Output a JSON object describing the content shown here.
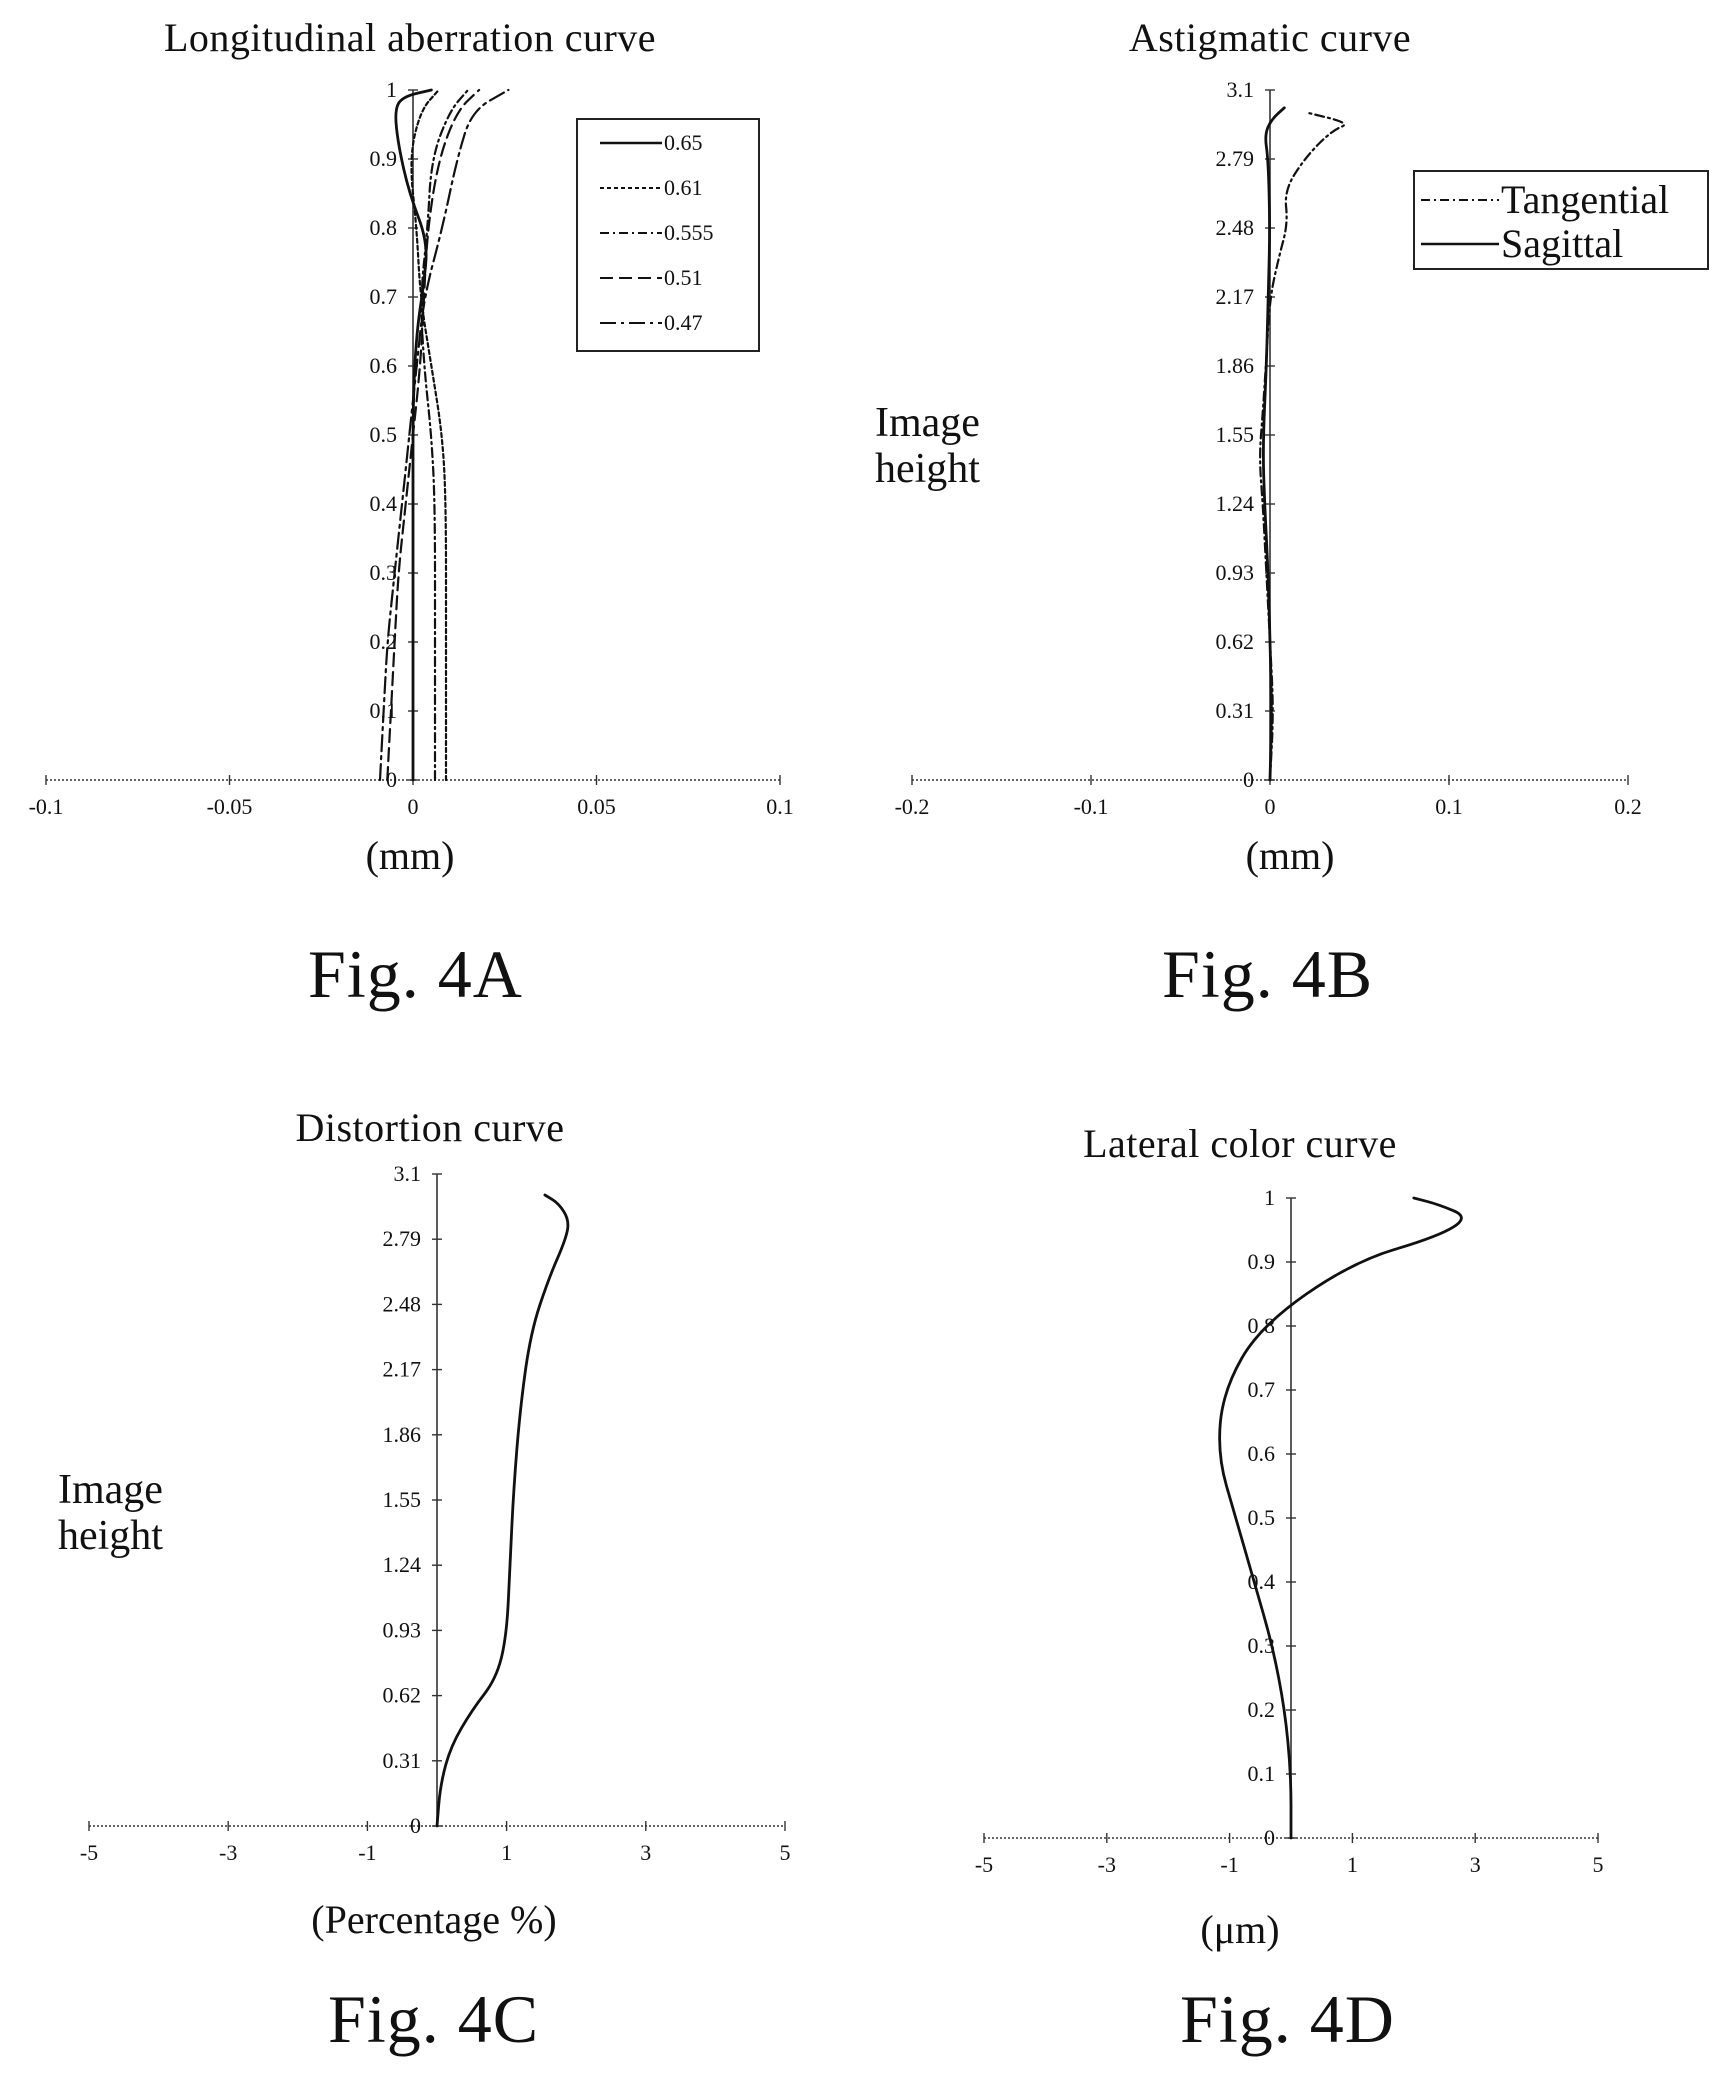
{
  "figures": [
    {
      "id": "4A",
      "caption": "Fig. 4A",
      "title": "Longitudinal aberration curve",
      "xlabel": "(mm)",
      "ylabel": "",
      "legend": [
        "0.65",
        "0.61",
        "0.555",
        "0.51",
        "0.47"
      ]
    },
    {
      "id": "4B",
      "caption": "Fig. 4B",
      "title": "Astigmatic curve",
      "xlabel": "(mm)",
      "ylabel": "Image height",
      "legend": [
        "Tangential",
        "Sagittal"
      ]
    },
    {
      "id": "4C",
      "caption": "Fig. 4C",
      "title": "Distortion curve",
      "xlabel": "(Percentage %)",
      "ylabel": "Image height",
      "legend": []
    },
    {
      "id": "4D",
      "caption": "Fig. 4D",
      "title": "Lateral color curve",
      "xlabel": "(μm)",
      "ylabel": "",
      "legend": []
    }
  ],
  "chart_data": [
    {
      "type": "line",
      "title": "Longitudinal aberration curve",
      "xlabel": "(mm)",
      "xlim": [
        -0.1,
        0.1
      ],
      "ylim": [
        0,
        1
      ],
      "xticks": [
        "-0.1",
        "-0.05",
        "0",
        "0.05",
        "0.1"
      ],
      "yticks": [
        "0",
        "0.1",
        "0.2",
        "0.3",
        "0.4",
        "0.5",
        "0.6",
        "0.7",
        "0.8",
        "0.9",
        "1"
      ],
      "legend_position": "top-right",
      "series": [
        {
          "name": "0.65",
          "dash": "solid",
          "points": [
            [
              0,
              0
            ],
            [
              0,
              0.2
            ],
            [
              0,
              0.4
            ],
            [
              0,
              0.55
            ],
            [
              0.001,
              0.65
            ],
            [
              0.003,
              0.72
            ],
            [
              0.004,
              0.78
            ],
            [
              -0.001,
              0.85
            ],
            [
              -0.004,
              0.92
            ],
            [
              -0.005,
              0.97
            ],
            [
              -0.003,
              0.99
            ],
            [
              0.005,
              1.0
            ]
          ]
        },
        {
          "name": "0.61",
          "dash": "dash-short",
          "points": [
            [
              0.009,
              0
            ],
            [
              0.009,
              0.2
            ],
            [
              0.009,
              0.4
            ],
            [
              0.008,
              0.5
            ],
            [
              0.005,
              0.6
            ],
            [
              0.002,
              0.7
            ],
            [
              0.001,
              0.8
            ],
            [
              -0.001,
              0.9
            ],
            [
              0.002,
              0.97
            ],
            [
              0.007,
              1.0
            ]
          ]
        },
        {
          "name": "0.555",
          "dash": "dash-dot",
          "points": [
            [
              0.006,
              0
            ],
            [
              0.006,
              0.2
            ],
            [
              0.006,
              0.4
            ],
            [
              0.005,
              0.5
            ],
            [
              0.003,
              0.6
            ],
            [
              0.002,
              0.7
            ],
            [
              0.004,
              0.8
            ],
            [
              0.005,
              0.9
            ],
            [
              0.01,
              0.97
            ],
            [
              0.015,
              1.0
            ]
          ]
        },
        {
          "name": "0.51",
          "dash": "dash-long",
          "points": [
            [
              -0.007,
              0
            ],
            [
              -0.006,
              0.1
            ],
            [
              -0.005,
              0.2
            ],
            [
              -0.004,
              0.3
            ],
            [
              -0.002,
              0.4
            ],
            [
              0.0,
              0.5
            ],
            [
              0.002,
              0.6
            ],
            [
              0.003,
              0.7
            ],
            [
              0.004,
              0.8
            ],
            [
              0.007,
              0.9
            ],
            [
              0.012,
              0.97
            ],
            [
              0.018,
              1.0
            ]
          ]
        },
        {
          "name": "0.47",
          "dash": "dash-dot-long",
          "points": [
            [
              -0.009,
              0
            ],
            [
              -0.008,
              0.1
            ],
            [
              -0.007,
              0.2
            ],
            [
              -0.005,
              0.3
            ],
            [
              -0.003,
              0.4
            ],
            [
              -0.001,
              0.5
            ],
            [
              0.001,
              0.6
            ],
            [
              0.003,
              0.7
            ],
            [
              0.008,
              0.8
            ],
            [
              0.012,
              0.9
            ],
            [
              0.016,
              0.97
            ],
            [
              0.026,
              1.0
            ]
          ]
        }
      ]
    },
    {
      "type": "line",
      "title": "Astigmatic curve",
      "xlabel": "(mm)",
      "ylabel": "Image height",
      "xlim": [
        -0.2,
        0.2
      ],
      "ylim": [
        0,
        3.1
      ],
      "xticks": [
        "-0.2",
        "-0.1",
        "0",
        "0.1",
        "0.2"
      ],
      "yticks": [
        "0",
        "0.31",
        "0.62",
        "0.93",
        "1.24",
        "1.55",
        "1.86",
        "2.17",
        "2.48",
        "2.79",
        "3.1"
      ],
      "legend_position": "top-right",
      "series": [
        {
          "name": "Tangential",
          "dash": "dash-dot",
          "points": [
            [
              0,
              0
            ],
            [
              0.002,
              0.31
            ],
            [
              0.0,
              0.62
            ],
            [
              -0.002,
              0.93
            ],
            [
              -0.004,
              1.24
            ],
            [
              -0.006,
              1.45
            ],
            [
              -0.004,
              1.65
            ],
            [
              -0.002,
              1.9
            ],
            [
              0.0,
              2.17
            ],
            [
              0.005,
              2.35
            ],
            [
              0.01,
              2.5
            ],
            [
              0.008,
              2.65
            ],
            [
              0.02,
              2.8
            ],
            [
              0.035,
              2.92
            ],
            [
              0.045,
              2.95
            ],
            [
              0.02,
              3.0
            ]
          ]
        },
        {
          "name": "Sagittal",
          "dash": "solid",
          "points": [
            [
              0,
              0
            ],
            [
              0.001,
              0.31
            ],
            [
              0.0,
              0.62
            ],
            [
              -0.001,
              0.93
            ],
            [
              -0.003,
              1.24
            ],
            [
              -0.004,
              1.5
            ],
            [
              -0.002,
              1.86
            ],
            [
              -0.001,
              2.17
            ],
            [
              0.0,
              2.48
            ],
            [
              -0.001,
              2.79
            ],
            [
              -0.003,
              2.9
            ],
            [
              0.001,
              2.97
            ],
            [
              0.008,
              3.02
            ]
          ]
        }
      ]
    },
    {
      "type": "line",
      "title": "Distortion curve",
      "xlabel": "(Percentage %)",
      "ylabel": "Image height",
      "xlim": [
        -5,
        5
      ],
      "ylim": [
        0,
        3.1
      ],
      "xticks": [
        "-5",
        "-3",
        "-1",
        "1",
        "3",
        "5"
      ],
      "yticks": [
        "0",
        "0.31",
        "0.62",
        "0.93",
        "1.24",
        "1.55",
        "1.86",
        "2.17",
        "2.48",
        "2.79",
        "3.1"
      ],
      "series": [
        {
          "name": "",
          "dash": "solid",
          "points": [
            [
              0,
              0
            ],
            [
              0.05,
              0.2
            ],
            [
              0.2,
              0.38
            ],
            [
              0.5,
              0.55
            ],
            [
              0.85,
              0.7
            ],
            [
              1.0,
              0.9
            ],
            [
              1.05,
              1.24
            ],
            [
              1.1,
              1.6
            ],
            [
              1.2,
              2.0
            ],
            [
              1.35,
              2.35
            ],
            [
              1.6,
              2.6
            ],
            [
              1.85,
              2.79
            ],
            [
              1.9,
              2.88
            ],
            [
              1.75,
              2.96
            ],
            [
              1.55,
              3.0
            ]
          ]
        }
      ]
    },
    {
      "type": "line",
      "title": "Lateral color curve",
      "xlabel": "(μm)",
      "xlim": [
        -5,
        5
      ],
      "ylim": [
        0,
        1
      ],
      "xticks": [
        "-5",
        "-3",
        "-1",
        "1",
        "3",
        "5"
      ],
      "yticks": [
        "0",
        "0.1",
        "0.2",
        "0.3",
        "0.4",
        "0.5",
        "0.6",
        "0.7",
        "0.8",
        "0.9",
        "1"
      ],
      "series": [
        {
          "name": "",
          "dash": "solid",
          "points": [
            [
              0,
              0
            ],
            [
              0.0,
              0.1
            ],
            [
              -0.1,
              0.2
            ],
            [
              -0.3,
              0.3
            ],
            [
              -0.6,
              0.4
            ],
            [
              -0.9,
              0.5
            ],
            [
              -1.2,
              0.6
            ],
            [
              -1.1,
              0.7
            ],
            [
              -0.5,
              0.8
            ],
            [
              1.0,
              0.9
            ],
            [
              2.4,
              0.94
            ],
            [
              2.9,
              0.97
            ],
            [
              2.4,
              0.99
            ],
            [
              2.0,
              1.0
            ]
          ]
        }
      ]
    }
  ]
}
